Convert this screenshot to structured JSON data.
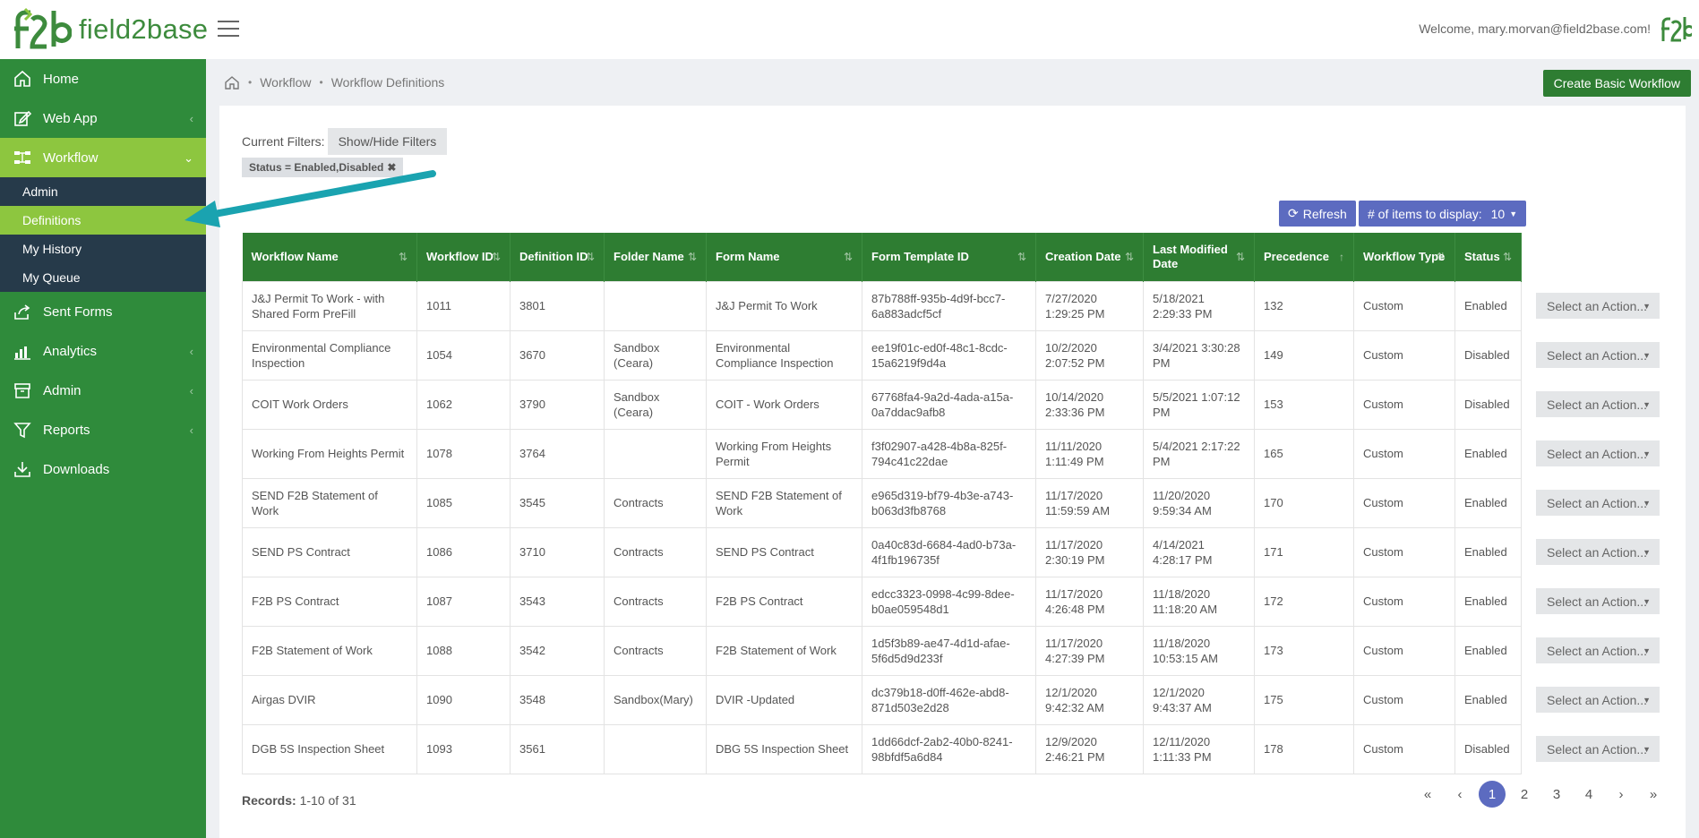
{
  "app": {
    "brand": "field2base",
    "welcome": "Welcome, mary.morvan@field2base.com!"
  },
  "sidebar": {
    "items": [
      {
        "label": "Home",
        "icon": "home-icon"
      },
      {
        "label": "Web App",
        "icon": "edit-icon",
        "chevron": "‹"
      },
      {
        "label": "Workflow",
        "icon": "workflow-icon",
        "chevron": "⌄",
        "active": true
      }
    ],
    "subitems": [
      {
        "label": "Admin"
      },
      {
        "label": "Definitions",
        "active": true
      },
      {
        "label": "My History"
      },
      {
        "label": "My Queue"
      }
    ],
    "items2": [
      {
        "label": "Sent Forms",
        "icon": "share-icon"
      },
      {
        "label": "Analytics",
        "icon": "bar-chart-icon",
        "chevron": "‹"
      },
      {
        "label": "Admin",
        "icon": "archive-icon",
        "chevron": "‹"
      },
      {
        "label": "Reports",
        "icon": "filter-icon",
        "chevron": "‹"
      },
      {
        "label": "Downloads",
        "icon": "download-icon"
      }
    ]
  },
  "breadcrumb": {
    "items": [
      "Workflow",
      "Workflow Definitions"
    ]
  },
  "toolbar": {
    "create_label": "Create Basic Workflow",
    "current_filters_label": "Current Filters:",
    "show_hide_label": "Show/Hide Filters",
    "filter_chip": "Status = Enabled,Disabled",
    "refresh_label": "Refresh",
    "items_label": "# of items to display:",
    "items_value": "10"
  },
  "table": {
    "columns": [
      {
        "label": "Workflow Name",
        "sort": "⇅"
      },
      {
        "label": "Workflow ID",
        "sort": "⇅"
      },
      {
        "label": "Definition ID",
        "sort": "⇅"
      },
      {
        "label": "Folder Name",
        "sort": "⇅"
      },
      {
        "label": "Form Name",
        "sort": "⇅"
      },
      {
        "label": "Form Template ID",
        "sort": "⇅"
      },
      {
        "label": "Creation Date",
        "sort": "⇅"
      },
      {
        "label": "Last Modified Date",
        "sort": "⇅"
      },
      {
        "label": "Precedence",
        "sort": "↑"
      },
      {
        "label": "Workflow Type",
        "sort": "⇅"
      },
      {
        "label": "Status",
        "sort": "⇅"
      }
    ],
    "rows": [
      [
        "J&J Permit To Work - with Shared Form PreFill",
        "1011",
        "3801",
        "",
        "J&J Permit To Work",
        "87b788ff-935b-4d9f-bcc7-6a883adcf5cf",
        "7/27/2020 1:29:25 PM",
        "5/18/2021 2:29:33 PM",
        "132",
        "Custom",
        "Enabled"
      ],
      [
        "Environmental Compliance Inspection",
        "1054",
        "3670",
        "Sandbox (Ceara)",
        "Environmental Compliance Inspection",
        "ee19f01c-ed0f-48c1-8cdc-15a6219f9d4a",
        "10/2/2020 2:07:52 PM",
        "3/4/2021 3:30:28 PM",
        "149",
        "Custom",
        "Disabled"
      ],
      [
        "COIT Work Orders",
        "1062",
        "3790",
        "Sandbox (Ceara)",
        "COIT - Work Orders",
        "67768fa4-9a2d-4ada-a15a-0a7ddac9afb8",
        "10/14/2020 2:33:36 PM",
        "5/5/2021 1:07:12 PM",
        "153",
        "Custom",
        "Disabled"
      ],
      [
        "Working From Heights Permit",
        "1078",
        "3764",
        "",
        "Working From Heights Permit",
        "f3f02907-a428-4b8a-825f-794c41c22dae",
        "11/11/2020 1:11:49 PM",
        "5/4/2021 2:17:22 PM",
        "165",
        "Custom",
        "Enabled"
      ],
      [
        "SEND F2B Statement of Work",
        "1085",
        "3545",
        "Contracts",
        "SEND F2B Statement of Work",
        "e965d319-bf79-4b3e-a743-b063d3fb8768",
        "11/17/2020 11:59:59 AM",
        "11/20/2020 9:59:34 AM",
        "170",
        "Custom",
        "Enabled"
      ],
      [
        "SEND PS Contract",
        "1086",
        "3710",
        "Contracts",
        "SEND PS Contract",
        "0a40c83d-6684-4ad0-b73a-4f1fb196735f",
        "11/17/2020 2:30:19 PM",
        "4/14/2021 4:28:17 PM",
        "171",
        "Custom",
        "Enabled"
      ],
      [
        "F2B PS Contract",
        "1087",
        "3543",
        "Contracts",
        "F2B PS Contract",
        "edcc3323-0998-4c99-8dee-b0ae059548d1",
        "11/17/2020 4:26:48 PM",
        "11/18/2020 11:18:20 AM",
        "172",
        "Custom",
        "Enabled"
      ],
      [
        "F2B Statement of Work",
        "1088",
        "3542",
        "Contracts",
        "F2B Statement of Work",
        "1d5f3b89-ae47-4d1d-afae-5f6d5d9d233f",
        "11/17/2020 4:27:39 PM",
        "11/18/2020 10:53:15 AM",
        "173",
        "Custom",
        "Enabled"
      ],
      [
        "Airgas DVIR",
        "1090",
        "3548",
        "Sandbox(Mary)",
        "DVIR -Updated",
        "dc379b18-d0ff-462e-abd8-871d503e2d28",
        "12/1/2020 9:42:32 AM",
        "12/1/2020 9:43:37 AM",
        "175",
        "Custom",
        "Enabled"
      ],
      [
        "DGB 5S Inspection Sheet",
        "1093",
        "3561",
        "",
        "DBG 5S Inspection Sheet",
        "1dd66dcf-2ab2-40b0-8241-98bfdf5a6d84",
        "12/9/2020 2:46:21 PM",
        "12/11/2020 1:11:33 PM",
        "178",
        "Custom",
        "Disabled"
      ]
    ],
    "action_label": "Select an Action..."
  },
  "footer": {
    "records_label": "Records:",
    "records_value": "1-10 of 31",
    "pager": [
      "«",
      "‹",
      "1",
      "2",
      "3",
      "4",
      "›",
      "»"
    ],
    "current_page": "1"
  },
  "colors": {
    "brand_green": "#2f8b3b",
    "active_lime": "#8dc63f",
    "header_green": "#2e7d32",
    "accent_indigo": "#5c6bc0",
    "arrow_teal": "#1aa3b0"
  }
}
